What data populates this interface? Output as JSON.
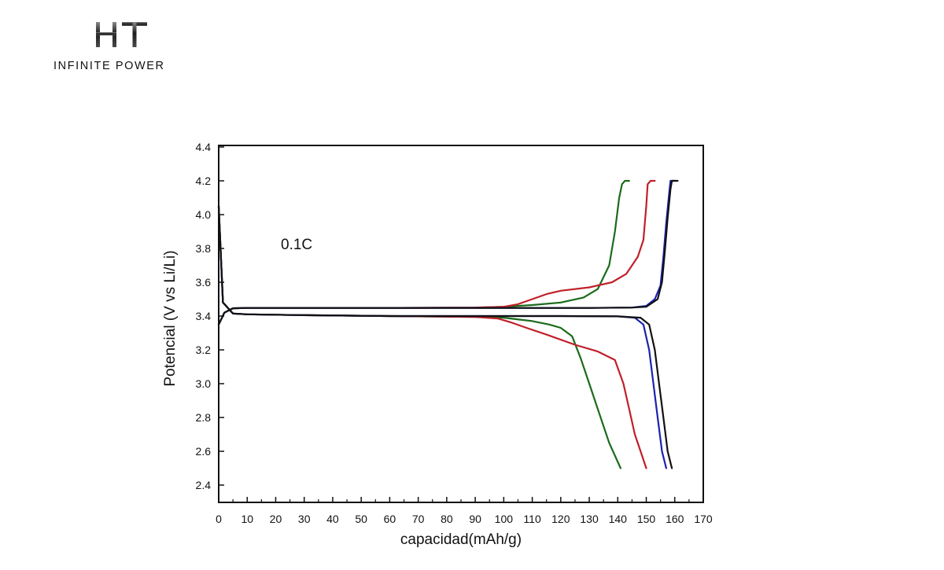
{
  "logo": {
    "mark": "HT",
    "text": "INFINITE POWER"
  },
  "chart_data": {
    "type": "line",
    "title": "",
    "xlabel": "capacidad(mAh/g)",
    "ylabel": "Potencial (V vs Li/Li)",
    "annotation": "0.1C",
    "xlim": [
      0,
      170
    ],
    "ylim": [
      2.3,
      4.4
    ],
    "xticks": [
      "0",
      "10",
      "20",
      "30",
      "40",
      "50",
      "60",
      "70",
      "80",
      "90",
      "100",
      "110",
      "120",
      "130",
      "140",
      "150",
      "160",
      "170"
    ],
    "yticks": [
      "2.4",
      "2.6",
      "2.8",
      "3.0",
      "3.2",
      "3.4",
      "3.6",
      "3.8",
      "4.0",
      "4.2",
      "4.4"
    ],
    "grid": false,
    "legend": "none",
    "series": [
      {
        "color": "#1a6b1a",
        "charge": {
          "x": [
            0,
            2,
            5,
            10,
            30,
            60,
            90,
            100,
            110,
            120,
            128,
            133,
            137,
            139,
            140.5,
            141.5,
            142.5,
            144
          ],
          "y": [
            3.35,
            3.42,
            3.446,
            3.448,
            3.448,
            3.448,
            3.45,
            3.455,
            3.465,
            3.48,
            3.51,
            3.56,
            3.7,
            3.9,
            4.1,
            4.18,
            4.2,
            4.2
          ]
        },
        "discharge": {
          "x": [
            0,
            1.5,
            5,
            10,
            30,
            60,
            90,
            100,
            110,
            116,
            120,
            124,
            127,
            130,
            133,
            137,
            141
          ],
          "y": [
            4.05,
            3.48,
            3.415,
            3.41,
            3.405,
            3.4,
            3.395,
            3.39,
            3.37,
            3.35,
            3.33,
            3.28,
            3.15,
            3.0,
            2.85,
            2.65,
            2.5
          ]
        }
      },
      {
        "color": "#c0202a",
        "charge": {
          "x": [
            0,
            2,
            5,
            10,
            30,
            60,
            90,
            100,
            105,
            110,
            115,
            120,
            130,
            138,
            143,
            147,
            149,
            150,
            150.5,
            151.5,
            153
          ],
          "y": [
            3.35,
            3.42,
            3.446,
            3.448,
            3.448,
            3.448,
            3.45,
            3.455,
            3.47,
            3.5,
            3.53,
            3.55,
            3.57,
            3.6,
            3.65,
            3.75,
            3.85,
            4.05,
            4.18,
            4.2,
            4.2
          ]
        },
        "discharge": {
          "x": [
            0,
            1.5,
            5,
            10,
            30,
            60,
            90,
            98,
            103,
            108,
            115,
            125,
            133,
            139,
            142,
            144,
            146,
            148,
            150
          ],
          "y": [
            4.05,
            3.48,
            3.415,
            3.41,
            3.405,
            3.4,
            3.395,
            3.385,
            3.36,
            3.33,
            3.29,
            3.23,
            3.19,
            3.14,
            3.0,
            2.85,
            2.7,
            2.6,
            2.5
          ]
        }
      },
      {
        "color": "#1c22b0",
        "charge": {
          "x": [
            0,
            2,
            5,
            10,
            30,
            60,
            90,
            110,
            130,
            145,
            150,
            153,
            155,
            156,
            157,
            158,
            158.5,
            160
          ],
          "y": [
            3.35,
            3.42,
            3.446,
            3.448,
            3.448,
            3.448,
            3.448,
            3.448,
            3.448,
            3.45,
            3.46,
            3.5,
            3.58,
            3.75,
            3.95,
            4.12,
            4.2,
            4.2
          ]
        },
        "discharge": {
          "x": [
            0,
            1.5,
            5,
            10,
            30,
            60,
            90,
            120,
            140,
            146,
            149,
            151,
            152.5,
            154,
            155.5,
            157
          ],
          "y": [
            4.05,
            3.48,
            3.415,
            3.41,
            3.405,
            3.4,
            3.4,
            3.4,
            3.398,
            3.39,
            3.35,
            3.2,
            3.0,
            2.8,
            2.6,
            2.5
          ]
        }
      },
      {
        "color": "#111111",
        "charge": {
          "x": [
            0,
            2,
            5,
            10,
            30,
            60,
            90,
            110,
            130,
            145,
            150,
            154,
            155.5,
            156.5,
            157.5,
            158.5,
            159,
            161
          ],
          "y": [
            3.35,
            3.42,
            3.446,
            3.448,
            3.448,
            3.448,
            3.448,
            3.448,
            3.448,
            3.45,
            3.455,
            3.5,
            3.6,
            3.78,
            3.98,
            4.15,
            4.2,
            4.2
          ]
        },
        "discharge": {
          "x": [
            0,
            1.5,
            5,
            10,
            30,
            60,
            90,
            120,
            140,
            148,
            151,
            153,
            154.5,
            156,
            157.5,
            159
          ],
          "y": [
            4.05,
            3.48,
            3.415,
            3.41,
            3.405,
            3.4,
            3.4,
            3.4,
            3.398,
            3.39,
            3.35,
            3.2,
            3.0,
            2.8,
            2.6,
            2.5
          ]
        }
      }
    ]
  }
}
